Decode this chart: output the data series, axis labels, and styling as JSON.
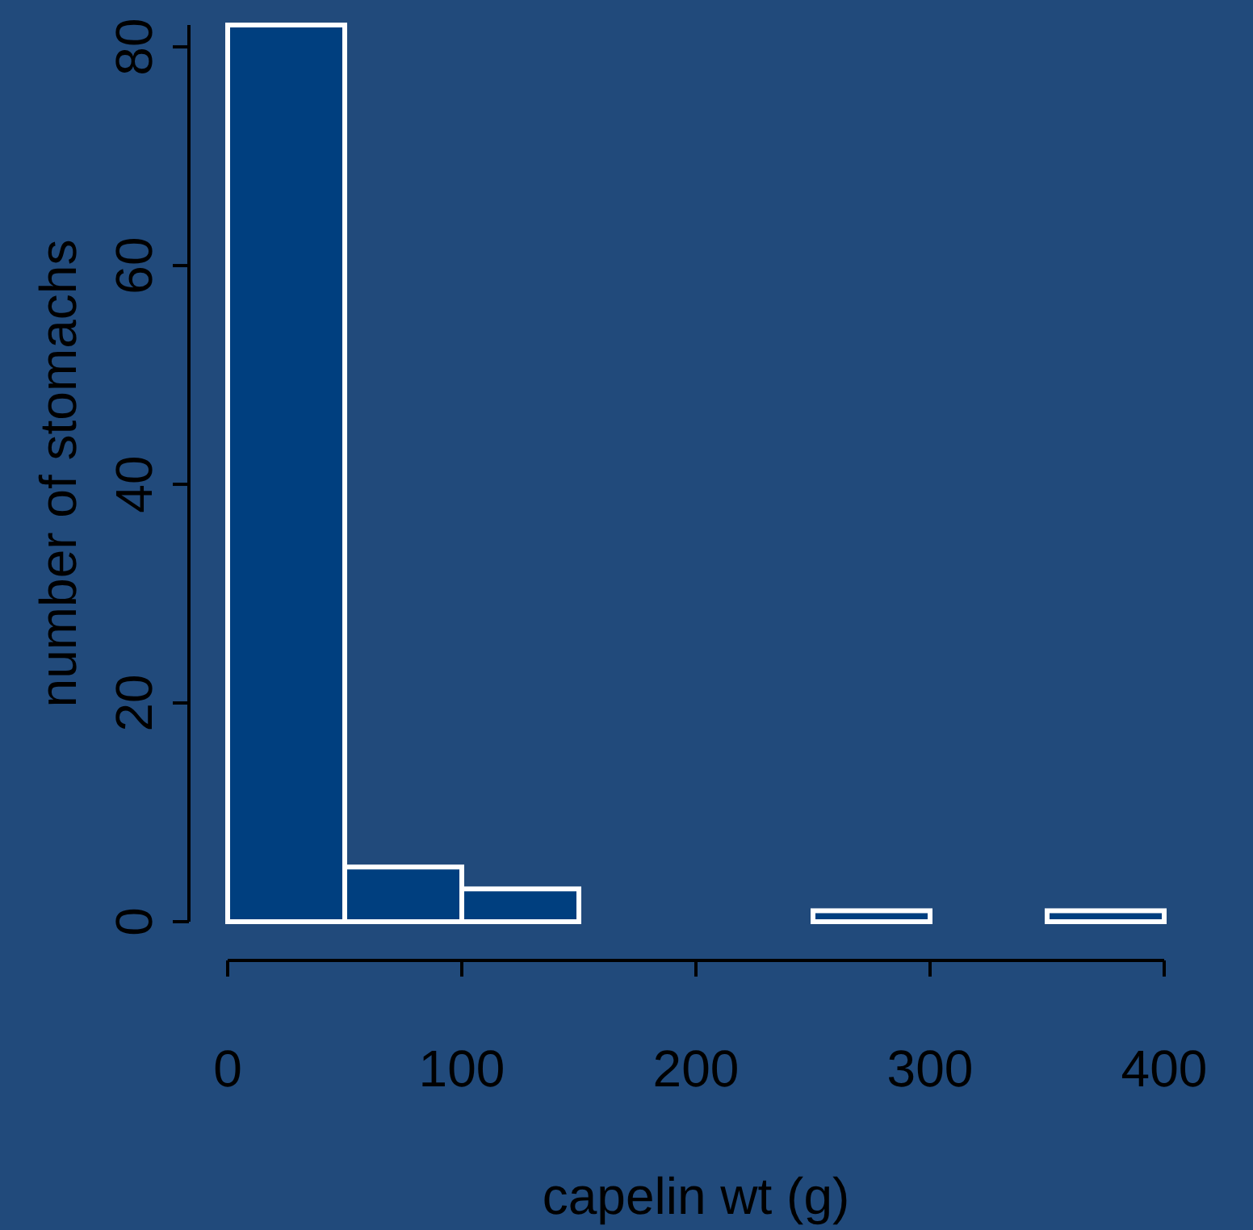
{
  "chart_data": {
    "type": "histogram",
    "xlabel": "capelin wt (g)",
    "ylabel": "number of stomachs",
    "bins": [
      0,
      50,
      100,
      150,
      200,
      250,
      300,
      350,
      400
    ],
    "values": [
      82,
      5,
      3,
      0,
      0,
      1,
      0,
      1
    ],
    "color": "#003f7f",
    "xlim": [
      0,
      400
    ],
    "xticks": [
      0,
      100,
      200,
      300,
      400
    ],
    "ylim": [
      0,
      82
    ],
    "yticks": [
      0,
      20,
      40,
      60,
      80
    ],
    "grid": false
  }
}
